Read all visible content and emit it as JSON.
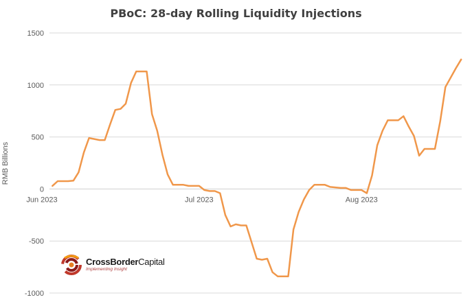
{
  "chart_data": {
    "type": "line",
    "title": "PBoC: 28-day Rolling  Liquidity Injections",
    "xlabel": "",
    "ylabel": "RMB Billions",
    "ylim": [
      -1000,
      1500
    ],
    "yticks": [
      -1000,
      -500,
      0,
      500,
      1000,
      1500
    ],
    "xtick_labels": [
      {
        "label": "Jun 2023",
        "day": 0
      },
      {
        "label": "Jul 2023",
        "day": 30
      },
      {
        "label": "Aug 2023",
        "day": 61
      }
    ],
    "x_unit": "days since Jun 1, 2023",
    "grid": true,
    "color": "#f0974a",
    "series": [
      {
        "name": "",
        "points": [
          [
            2,
            30
          ],
          [
            3,
            75
          ],
          [
            5,
            75
          ],
          [
            6,
            80
          ],
          [
            7,
            160
          ],
          [
            8,
            350
          ],
          [
            9,
            490
          ],
          [
            10,
            480
          ],
          [
            11,
            470
          ],
          [
            12,
            470
          ],
          [
            13,
            620
          ],
          [
            14,
            760
          ],
          [
            15,
            770
          ],
          [
            16,
            820
          ],
          [
            17,
            1020
          ],
          [
            18,
            1130
          ],
          [
            19,
            1130
          ],
          [
            20,
            1130
          ],
          [
            21,
            720
          ],
          [
            22,
            560
          ],
          [
            23,
            330
          ],
          [
            24,
            140
          ],
          [
            25,
            40
          ],
          [
            26,
            40
          ],
          [
            27,
            40
          ],
          [
            28,
            30
          ],
          [
            29,
            30
          ],
          [
            30,
            30
          ],
          [
            31,
            -10
          ],
          [
            32,
            -20
          ],
          [
            33,
            -20
          ],
          [
            34,
            -40
          ],
          [
            35,
            -250
          ],
          [
            36,
            -360
          ],
          [
            37,
            -340
          ],
          [
            38,
            -350
          ],
          [
            39,
            -350
          ],
          [
            40,
            -510
          ],
          [
            41,
            -670
          ],
          [
            42,
            -680
          ],
          [
            43,
            -670
          ],
          [
            44,
            -800
          ],
          [
            45,
            -840
          ],
          [
            46,
            -840
          ],
          [
            47,
            -840
          ],
          [
            48,
            -390
          ],
          [
            49,
            -220
          ],
          [
            50,
            -100
          ],
          [
            51,
            -10
          ],
          [
            52,
            40
          ],
          [
            53,
            40
          ],
          [
            54,
            40
          ],
          [
            55,
            20
          ],
          [
            56,
            15
          ],
          [
            57,
            10
          ],
          [
            58,
            10
          ],
          [
            59,
            -10
          ],
          [
            60,
            -10
          ],
          [
            61,
            -10
          ],
          [
            62,
            -40
          ],
          [
            63,
            130
          ],
          [
            64,
            420
          ],
          [
            65,
            560
          ],
          [
            66,
            660
          ],
          [
            67,
            660
          ],
          [
            68,
            660
          ],
          [
            69,
            700
          ],
          [
            70,
            600
          ],
          [
            71,
            510
          ],
          [
            72,
            320
          ],
          [
            73,
            385
          ],
          [
            74,
            385
          ],
          [
            75,
            385
          ],
          [
            76,
            650
          ],
          [
            77,
            980
          ],
          [
            78,
            1070
          ],
          [
            79,
            1160
          ],
          [
            80,
            1245
          ]
        ]
      }
    ]
  },
  "logo": {
    "name_bold": "CrossBorder",
    "name_regular": "Capital",
    "tagline": "Implementing Insight"
  }
}
